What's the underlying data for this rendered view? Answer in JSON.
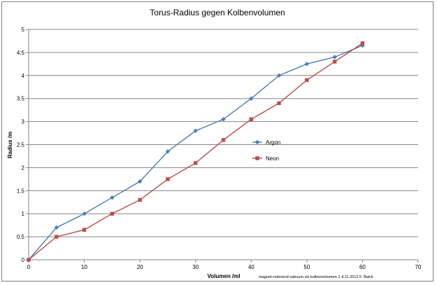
{
  "chart_data": {
    "type": "line",
    "title": "Torus-Radius gegen Kolbenvolumen",
    "xlabel": "Volumen /ml",
    "ylabel": "Radius /m",
    "xlim": [
      0,
      70
    ],
    "ylim": [
      0,
      5
    ],
    "x_ticks": [
      "0",
      "10",
      "20",
      "30",
      "40",
      "50",
      "60",
      "70"
    ],
    "y_ticks": [
      "0",
      "0.5",
      "1",
      "1.5",
      "2",
      "2.5",
      "3",
      "3.5",
      "4",
      "4.5",
      "5"
    ],
    "grid": "horizontal",
    "legend_position": "center-right",
    "footnote": "magnet-rotierend-vakuum.xls kolbenvolumen-1 4.11.2012 F. Balck",
    "series": [
      {
        "name": "Argon",
        "color": "#4a7ebb",
        "marker": "diamond",
        "x": [
          0,
          5,
          10,
          15,
          20,
          25,
          30,
          35,
          40,
          45,
          50,
          55,
          60
        ],
        "y": [
          0,
          0.7,
          1.0,
          1.35,
          1.7,
          2.35,
          2.8,
          3.05,
          3.5,
          4.0,
          4.25,
          4.4,
          4.65
        ]
      },
      {
        "name": "Neon",
        "color": "#be4b48",
        "marker": "square",
        "x": [
          0,
          5,
          10,
          15,
          20,
          25,
          30,
          35,
          40,
          45,
          50,
          55,
          60
        ],
        "y": [
          0,
          0.5,
          0.65,
          1.0,
          1.3,
          1.75,
          2.1,
          2.6,
          3.05,
          3.4,
          3.9,
          4.3,
          4.7
        ]
      }
    ]
  }
}
